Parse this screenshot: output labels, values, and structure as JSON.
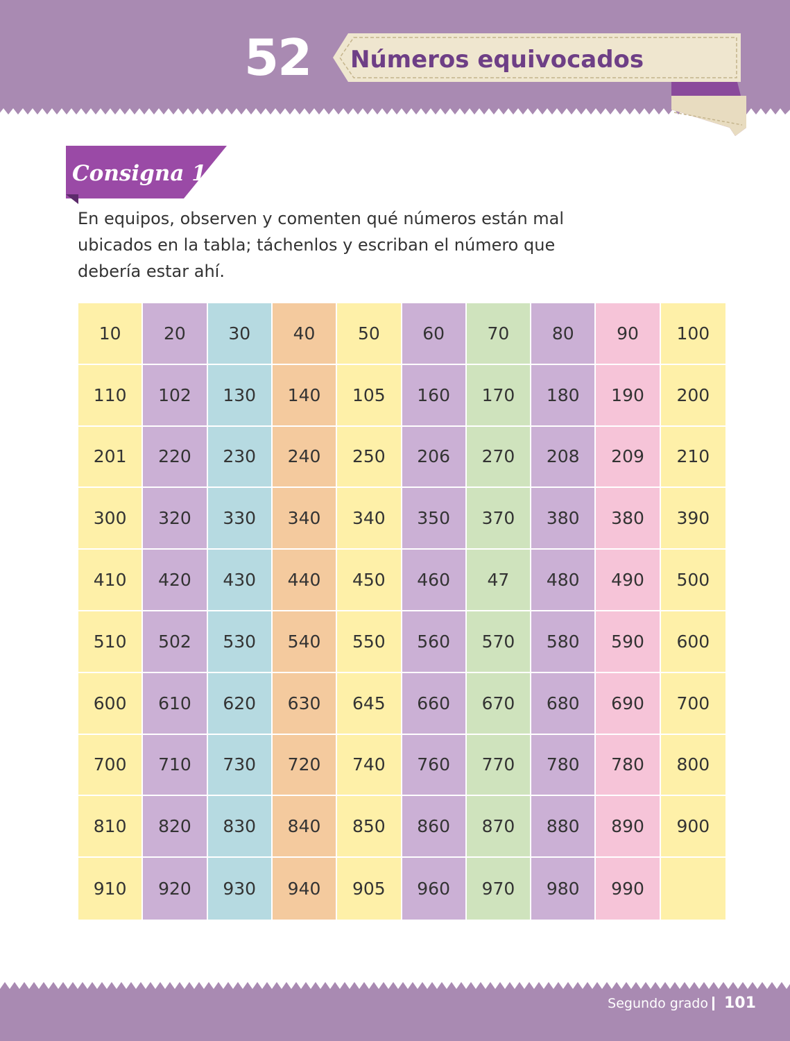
{
  "header": {
    "lesson_number": "52",
    "title": "Números equivocados"
  },
  "consigna": {
    "label": "Consigna 1"
  },
  "instructions": "En equipos, observen y comenten qué números están mal ubicados en la tabla; táchenlos y escriban el número que debería estar ahí.",
  "table": {
    "rows": [
      [
        "10",
        "20",
        "30",
        "40",
        "50",
        "60",
        "70",
        "80",
        "90",
        "100"
      ],
      [
        "110",
        "102",
        "130",
        "140",
        "105",
        "160",
        "170",
        "180",
        "190",
        "200"
      ],
      [
        "201",
        "220",
        "230",
        "240",
        "250",
        "206",
        "270",
        "208",
        "209",
        "210"
      ],
      [
        "300",
        "320",
        "330",
        "340",
        "340",
        "350",
        "370",
        "380",
        "380",
        "390"
      ],
      [
        "410",
        "420",
        "430",
        "440",
        "450",
        "460",
        "47",
        "480",
        "490",
        "500"
      ],
      [
        "510",
        "502",
        "530",
        "540",
        "550",
        "560",
        "570",
        "580",
        "590",
        "600"
      ],
      [
        "600",
        "610",
        "620",
        "630",
        "645",
        "660",
        "670",
        "680",
        "690",
        "700"
      ],
      [
        "700",
        "710",
        "730",
        "720",
        "740",
        "760",
        "770",
        "780",
        "780",
        "800"
      ],
      [
        "810",
        "820",
        "830",
        "840",
        "850",
        "860",
        "870",
        "880",
        "890",
        "900"
      ],
      [
        "910",
        "920",
        "930",
        "940",
        "905",
        "960",
        "970",
        "980",
        "990",
        ""
      ]
    ]
  },
  "footer": {
    "grade": "Segundo grado",
    "page_number": "101"
  },
  "colors": {
    "band_purple": "#a98ab2",
    "title_purple": "#6e3f86",
    "ribbon_cream": "#efe6cf",
    "tag_purple": "#9a4aa6",
    "col_yellow": "#fef0a8",
    "col_lilac": "#cbb0d5",
    "col_blue": "#b6dae1",
    "col_orange": "#f4ca9e",
    "col_green": "#cfe3bd",
    "col_pink": "#f6c4d8"
  }
}
